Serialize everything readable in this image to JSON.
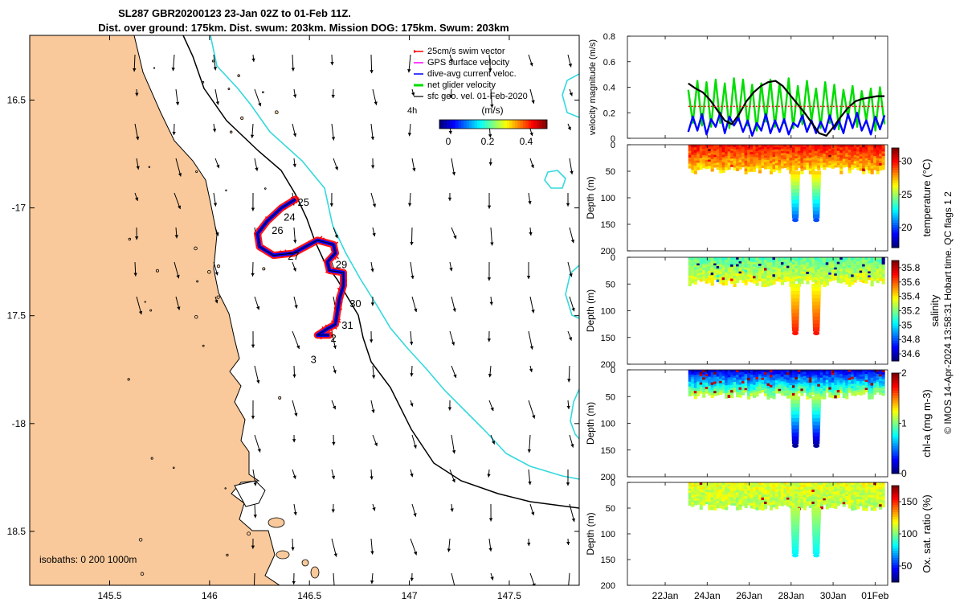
{
  "title": {
    "line1": "SL287 GBR20200123 23-Jan 02Z to 01-Feb 11Z.",
    "line2": "Dist. over ground: 175km. Dist. swum: 203km. Mission DOG: 175km. Swum: 203km"
  },
  "colors": {
    "land": "#f9c99b",
    "isobath_200": "#000000",
    "isobath_1000": "#33d9dc",
    "swim": "#ff0000",
    "gps": "#ff00ff",
    "diveavg": "#0000ff",
    "net": "#00dd00",
    "sfc": "#000000"
  },
  "chart_data": [
    {
      "type": "map",
      "name": "track-map",
      "xlim": [
        145.1,
        147.85
      ],
      "ylim": [
        -18.75,
        -16.2
      ],
      "xticks": [
        145.5,
        146,
        146.5,
        147,
        147.5
      ],
      "xtick_labels": [
        "145.5",
        "146",
        "146.5",
        "147",
        "147.5"
      ],
      "yticks": [
        -16.5,
        -17,
        -17.5,
        -18,
        -18.5
      ],
      "ytick_labels": [
        "16.5",
        "-17",
        "17.5",
        "-18",
        "18.5"
      ],
      "legend": [
        {
          "label": "25cm/s swim vector",
          "color": "#ff0000"
        },
        {
          "label": "GPS surface velocity",
          "color": "#ff00ff"
        },
        {
          "label": "dive-avg current veloc.",
          "color": "#0000ff"
        },
        {
          "label": "net glider velocity",
          "color": "#00dd00"
        },
        {
          "label": "sfc geo. vel. 01-Feb-2020",
          "color": "#000000"
        }
      ],
      "colorbar": {
        "label": "(m/s)",
        "ticks": [
          "0",
          "0.2",
          "0.4"
        ],
        "range": [
          0,
          0.5
        ],
        "corner_text": "4h"
      },
      "isobath_label": "isobaths: 0   200   1000m",
      "day_labels": [
        {
          "text": "25",
          "lon": 146.47,
          "lat": -16.99
        },
        {
          "text": "24",
          "lon": 146.4,
          "lat": -17.06
        },
        {
          "text": "26",
          "lon": 146.34,
          "lat": -17.12
        },
        {
          "text": "27",
          "lon": 146.42,
          "lat": -17.24
        },
        {
          "text": "29",
          "lon": 146.66,
          "lat": -17.28
        },
        {
          "text": "30",
          "lon": 146.73,
          "lat": -17.46
        },
        {
          "text": "31",
          "lon": 146.69,
          "lat": -17.56
        },
        {
          "text": "2",
          "lon": 146.62,
          "lat": -17.62
        },
        {
          "text": "3",
          "lon": 146.52,
          "lat": -17.72
        }
      ],
      "track": [
        [
          146.43,
          -16.96
        ],
        [
          146.36,
          -17.0
        ],
        [
          146.29,
          -17.06
        ],
        [
          146.24,
          -17.12
        ],
        [
          146.25,
          -17.18
        ],
        [
          146.32,
          -17.22
        ],
        [
          146.42,
          -17.21
        ],
        [
          146.54,
          -17.15
        ],
        [
          146.62,
          -17.17
        ],
        [
          146.63,
          -17.21
        ],
        [
          146.59,
          -17.25
        ],
        [
          146.6,
          -17.29
        ],
        [
          146.67,
          -17.3
        ],
        [
          146.67,
          -17.36
        ],
        [
          146.65,
          -17.42
        ],
        [
          146.64,
          -17.48
        ],
        [
          146.63,
          -17.54
        ],
        [
          146.59,
          -17.56
        ],
        [
          146.54,
          -17.59
        ],
        [
          146.6,
          -17.59
        ]
      ]
    },
    {
      "type": "line",
      "name": "velocity-magnitude",
      "ylabel": "velocity magnitude (m/s)",
      "ylim": [
        0,
        0.8
      ],
      "yticks": [
        "0",
        "0.2",
        "0.4",
        "0.6",
        "0.8"
      ],
      "x_start_day": 23.1,
      "x_end_day": 32.45,
      "series": [
        {
          "name": "net glider velocity",
          "color": "#00dd00",
          "values": [
            0.38,
            0.12,
            0.45,
            0.1,
            0.44,
            0.09,
            0.46,
            0.12,
            0.43,
            0.08,
            0.47,
            0.14,
            0.46,
            0.1,
            0.42,
            0.06,
            0.43,
            0.13,
            0.46,
            0.09,
            0.43,
            0.12,
            0.47,
            0.08,
            0.41,
            0.11,
            0.45,
            0.14,
            0.39,
            0.08,
            0.44,
            0.12,
            0.42,
            0.07,
            0.38,
            0.16,
            0.41,
            0.09,
            0.37,
            0.14,
            0.39,
            0.06,
            0.4,
            0.11
          ]
        },
        {
          "name": "dive-avg current veloc.",
          "color": "#0000ff",
          "values": [
            0.05,
            0.17,
            0.06,
            0.19,
            0.03,
            0.15,
            0.09,
            0.2,
            0.04,
            0.17,
            0.1,
            0.16,
            0.05,
            0.14,
            0.02,
            0.12,
            0.06,
            0.19,
            0.04,
            0.14,
            0.05,
            0.15,
            0.03,
            0.12,
            0.09,
            0.18,
            0.05,
            0.14,
            0.04,
            0.13,
            0.05,
            0.18,
            0.07,
            0.14,
            0.04,
            0.19,
            0.08,
            0.2,
            0.06,
            0.14,
            0.03,
            0.17,
            0.07,
            0.18
          ]
        },
        {
          "name": "sfc geo. vel.",
          "color": "#000000",
          "values": [
            0.43,
            0.39,
            0.36,
            0.3,
            0.22,
            0.14,
            0.11,
            0.19,
            0.29,
            0.36,
            0.41,
            0.44,
            0.45,
            0.41,
            0.34,
            0.27,
            0.2,
            0.12,
            0.04,
            0.02,
            0.09,
            0.17,
            0.24,
            0.29,
            0.31,
            0.32,
            0.33,
            0.33
          ]
        },
        {
          "name": "25cm/s swim vector",
          "color": "#ff0000",
          "values": [
            0.25,
            0.25
          ]
        }
      ]
    },
    {
      "type": "heatmap",
      "name": "temperature-section",
      "ylabel": "Depth (m)",
      "ylim": [
        0,
        200
      ],
      "yticks": [
        "0",
        "50",
        "100",
        "150",
        "200"
      ],
      "colorbar_label": "temperature (°C)",
      "colorbar_ticks": [
        "30",
        "25",
        "20"
      ],
      "colorbar_range": [
        17,
        32
      ],
      "surface_value": 30,
      "deep_value": 27,
      "max_depth": 55,
      "dives": [
        {
          "day": 28.2,
          "depth": 145,
          "bottom": 20
        },
        {
          "day": 29.2,
          "depth": 145,
          "bottom": 20
        }
      ]
    },
    {
      "type": "heatmap",
      "name": "salinity-section",
      "ylabel": "Depth (m)",
      "ylim": [
        0,
        200
      ],
      "yticks": [
        "0",
        "50",
        "100",
        "150",
        "200"
      ],
      "colorbar_label": "salinity",
      "colorbar_ticks": [
        "35.8",
        "35.6",
        "35.4",
        "35.2",
        "35",
        "34.8",
        "34.6"
      ],
      "colorbar_range": [
        34.5,
        35.9
      ],
      "surface_value": 35.15,
      "deep_value": 35.35,
      "max_depth": 55,
      "dives": [
        {
          "day": 28.2,
          "depth": 145,
          "bottom": 35.7
        },
        {
          "day": 29.2,
          "depth": 145,
          "bottom": 35.7
        }
      ]
    },
    {
      "type": "heatmap",
      "name": "chla-section",
      "ylabel": "Depth (m)",
      "ylim": [
        0,
        200
      ],
      "yticks": [
        "0",
        "50",
        "100",
        "150",
        "200"
      ],
      "colorbar_label": "chl-a (mg m-3)",
      "colorbar_ticks": [
        "2",
        "1",
        "0"
      ],
      "colorbar_range": [
        0,
        2
      ],
      "surface_value": 0.2,
      "deep_value": 1.1,
      "max_depth": 55,
      "dives": [
        {
          "day": 28.2,
          "depth": 145,
          "bottom": 0.05
        },
        {
          "day": 29.2,
          "depth": 145,
          "bottom": 0.05
        }
      ]
    },
    {
      "type": "heatmap",
      "name": "oxygen-section",
      "ylabel": "Depth (m)",
      "ylim": [
        0,
        200
      ],
      "yticks": [
        "0",
        "50",
        "100",
        "150",
        "200"
      ],
      "colorbar_label": "Ox. sat. ratio (%)",
      "colorbar_ticks": [
        "150",
        "100",
        "50"
      ],
      "colorbar_range": [
        25,
        175
      ],
      "surface_value": 115,
      "deep_value": 108,
      "max_depth": 55,
      "dives": [
        {
          "day": 28.2,
          "depth": 145,
          "bottom": 80
        },
        {
          "day": 29.2,
          "depth": 145,
          "bottom": 80
        }
      ]
    }
  ],
  "time_axis": {
    "ticks": [
      {
        "day": 22,
        "label": "22Jan"
      },
      {
        "day": 24,
        "label": "24Jan"
      },
      {
        "day": 26,
        "label": "26Jan"
      },
      {
        "day": 28,
        "label": "28Jan"
      },
      {
        "day": 30,
        "label": "30Jan"
      },
      {
        "day": 32,
        "label": "01Feb"
      }
    ],
    "xlim": [
      20.2,
      32.6
    ]
  },
  "credit": "© IMOS 14-Apr-2024 13:58:31 Hobart time. QC flags 1  2"
}
